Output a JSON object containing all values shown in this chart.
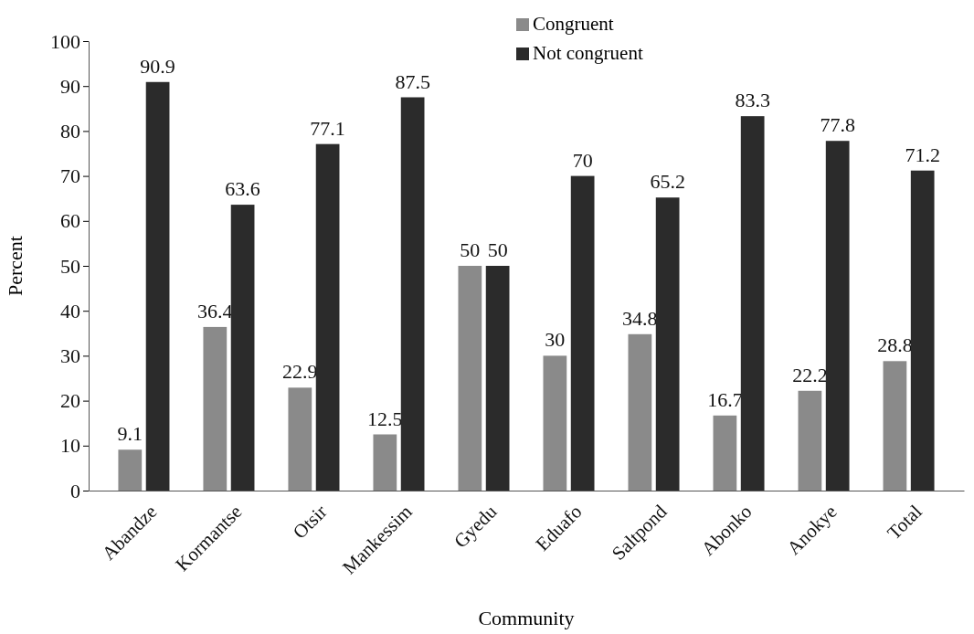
{
  "chart_data": {
    "type": "bar",
    "xlabel": "Community",
    "ylabel": "Percent",
    "categories": [
      "Abandze",
      "Kormantse",
      "Otsir",
      "Mankessim",
      "Gyedu",
      "Eduafo",
      "Saltpond",
      "Abonko",
      "Anokye",
      "Total"
    ],
    "series": [
      {
        "name": "Congruent",
        "color": "#8a8a8a",
        "values": [
          9.1,
          36.4,
          22.9,
          12.5,
          50,
          30,
          34.8,
          16.7,
          22.2,
          28.8
        ]
      },
      {
        "name": "Not congruent",
        "color": "#2b2b2b",
        "values": [
          90.9,
          63.6,
          77.1,
          87.5,
          50,
          70,
          65.2,
          83.3,
          77.8,
          71.2
        ]
      }
    ],
    "ylim": [
      0,
      100
    ],
    "yticks": [
      0,
      10,
      20,
      30,
      40,
      50,
      60,
      70,
      80,
      90,
      100
    ],
    "data_labels": true,
    "legend": "top",
    "grid": false
  }
}
